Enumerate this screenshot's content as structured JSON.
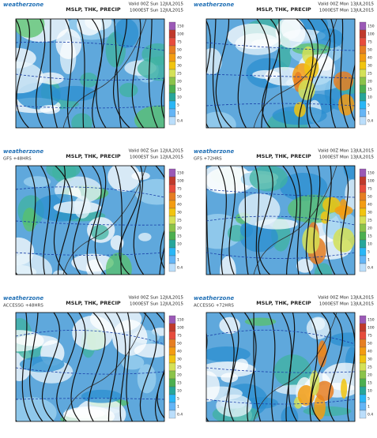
{
  "panels": [
    {
      "logo": "weatherzone",
      "title": "MSLP, THK, PRECIP",
      "valid": "Valid 00Z Sun 12JUL2015",
      "local": "1000EST Sun 12JUL2015"
    },
    {
      "logo": "weatherzone",
      "title": "MSLP, THK, PRECIP",
      "valid": "Valid 00Z Mon 13JUL2015",
      "local": "1000EST Mon 13JUL2015"
    },
    {
      "logo": "weatherzone",
      "model": "GFS +48HRS",
      "title": "MSLP, THK, PRECIP",
      "valid": "Valid 00Z Sun 12JUL2015",
      "local": "1000EST Sun 12JUL2015"
    },
    {
      "logo": "weatherzone",
      "model": "GFS +72HRS",
      "title": "MSLP, THK, PRECIP",
      "valid": "Valid 00Z Mon 13JUL2015",
      "local": "1000EST Mon 13JUL2015"
    },
    {
      "logo": "weatherzone",
      "model": "ACCESSG +48HRS",
      "title": "MSLP, THK, PRECIP",
      "valid": "Valid 00Z Sun 12JUL2015",
      "local": "1000EST Sun 12JUL2015"
    },
    {
      "logo": "weatherzone",
      "model": "ACCESSG +72HRS",
      "title": "MSLP, THK, PRECIP",
      "valid": "Valid 00Z Mon 13JUL2015",
      "local": "1000EST Mon 13JUL2015"
    }
  ],
  "legend_labels": [
    "150",
    "100",
    "75",
    "50",
    "40",
    "30",
    "25",
    "20",
    "15",
    "10",
    "5",
    "1",
    "0.4"
  ]
}
